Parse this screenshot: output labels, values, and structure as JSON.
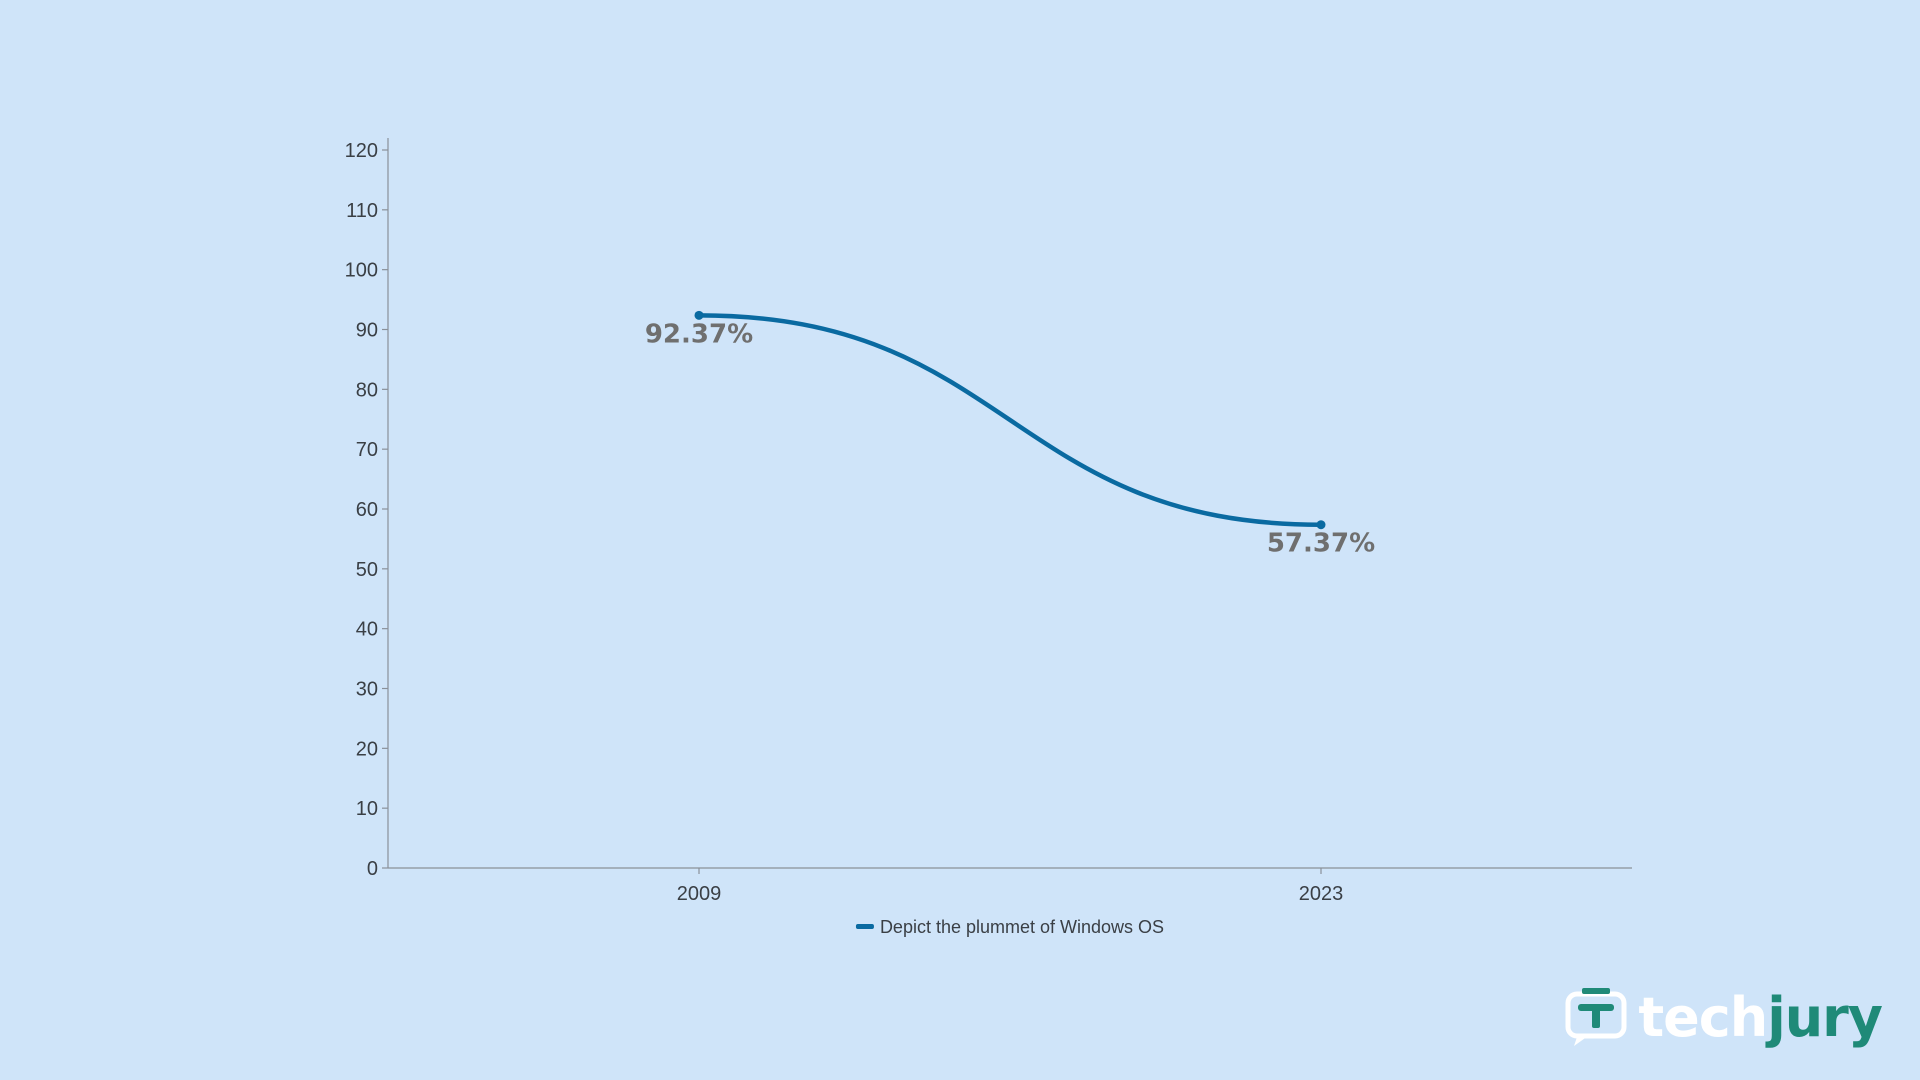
{
  "chart_data": {
    "type": "line",
    "title": "",
    "xlabel": "",
    "ylabel": "",
    "x": [
      "2009",
      "2023"
    ],
    "series": [
      {
        "name": "Depict the plummet of Windows OS",
        "values": [
          92.37,
          57.37
        ],
        "labels": [
          "92.37%",
          "57.37%"
        ],
        "color": "#0a6aa1"
      }
    ],
    "yticks": [
      0,
      10,
      20,
      30,
      40,
      50,
      60,
      70,
      80,
      90,
      100,
      110,
      120
    ],
    "ylim": [
      0,
      120
    ],
    "grid": false,
    "legend": "bottom-center",
    "smooth": true
  },
  "colors": {
    "background": "#cfe4f9",
    "axis": "#8a9099",
    "data_label": "#6f6f6f"
  },
  "logo": {
    "part1": "tech",
    "part2": "jury",
    "icon": "chat-bubble-icon"
  }
}
